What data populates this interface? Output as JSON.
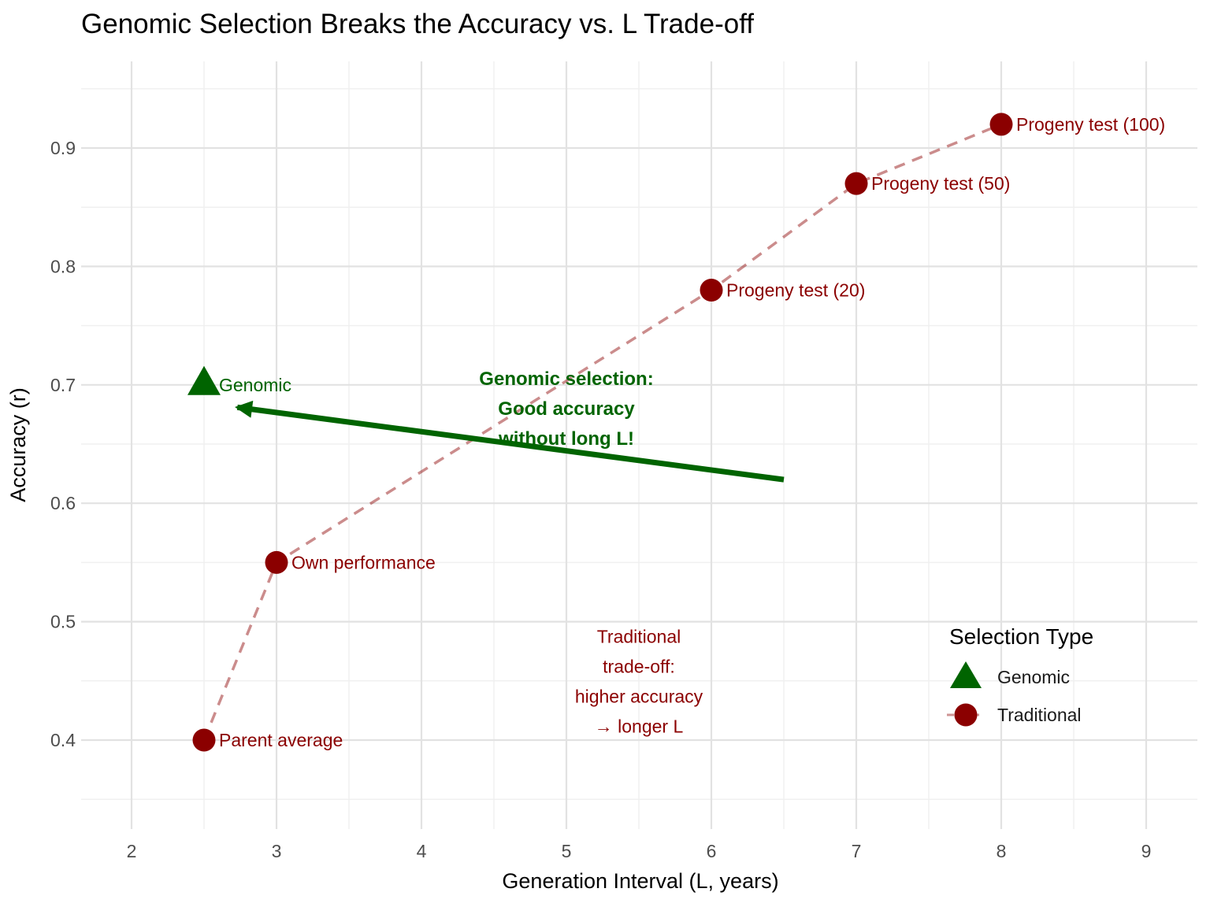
{
  "colors": {
    "traditional": "#8B0000",
    "traditional_line": "#8B0000",
    "genomic": "#006400",
    "grid_major": "#E2E2E2",
    "grid_minor": "#F0F0F0",
    "axis_text": "#4d4d4d",
    "background": "#FFFFFF"
  },
  "chart_data": {
    "type": "scatter",
    "title": "Genomic Selection Breaks the Accuracy vs. L Trade-off",
    "xlabel": "Generation Interval (L, years)",
    "ylabel": "Accuracy (r)",
    "xlim": [
      1.65,
      9.35
    ],
    "ylim": [
      0.325,
      0.975
    ],
    "x_ticks": [
      2,
      3,
      4,
      5,
      6,
      7,
      8,
      9
    ],
    "x_minor": [
      2.5,
      3.5,
      4.5,
      5.5,
      6.5,
      7.5,
      8.5
    ],
    "y_ticks": [
      0.4,
      0.5,
      0.6,
      0.7,
      0.8,
      0.9
    ],
    "y_minor": [
      0.35,
      0.45,
      0.55,
      0.65,
      0.75,
      0.85,
      0.95
    ],
    "grid": true,
    "legend_position": "bottom-right-inside",
    "series": [
      {
        "name": "Traditional",
        "marker": "circle",
        "color": "#8B0000",
        "linestyle": "dashed",
        "points": [
          {
            "x": 2.5,
            "y": 0.4,
            "label": "Parent average"
          },
          {
            "x": 3.0,
            "y": 0.55,
            "label": "Own performance"
          },
          {
            "x": 6.0,
            "y": 0.78,
            "label": "Progeny test (20)"
          },
          {
            "x": 7.0,
            "y": 0.87,
            "label": "Progeny test (50)"
          },
          {
            "x": 8.0,
            "y": 0.92,
            "label": "Progeny test (100)"
          }
        ]
      },
      {
        "name": "Genomic",
        "marker": "triangle",
        "color": "#006400",
        "linestyle": "none",
        "points": [
          {
            "x": 2.5,
            "y": 0.7,
            "label": "Genomic"
          }
        ]
      }
    ],
    "annotations": [
      {
        "id": "genomic-note",
        "color": "#006400",
        "bold": true,
        "x": 5.0,
        "y": 0.7,
        "lines": [
          "Genomic selection:",
          "Good accuracy",
          "without long L!"
        ]
      },
      {
        "id": "traditional-note",
        "color": "#8B0000",
        "bold": false,
        "x": 5.5,
        "y": 0.482,
        "lines": [
          "Traditional",
          "trade-off:",
          "higher accuracy",
          "→ longer L"
        ]
      }
    ],
    "arrow": {
      "from": {
        "x": 6.5,
        "y": 0.62
      },
      "to": {
        "x": 2.73,
        "y": 0.681
      },
      "color": "#006400"
    },
    "legend": {
      "title": "Selection Type",
      "items": [
        {
          "label": "Genomic",
          "marker": "triangle",
          "color": "#006400"
        },
        {
          "label": "Traditional",
          "marker": "circle",
          "color": "#8B0000"
        }
      ]
    }
  }
}
